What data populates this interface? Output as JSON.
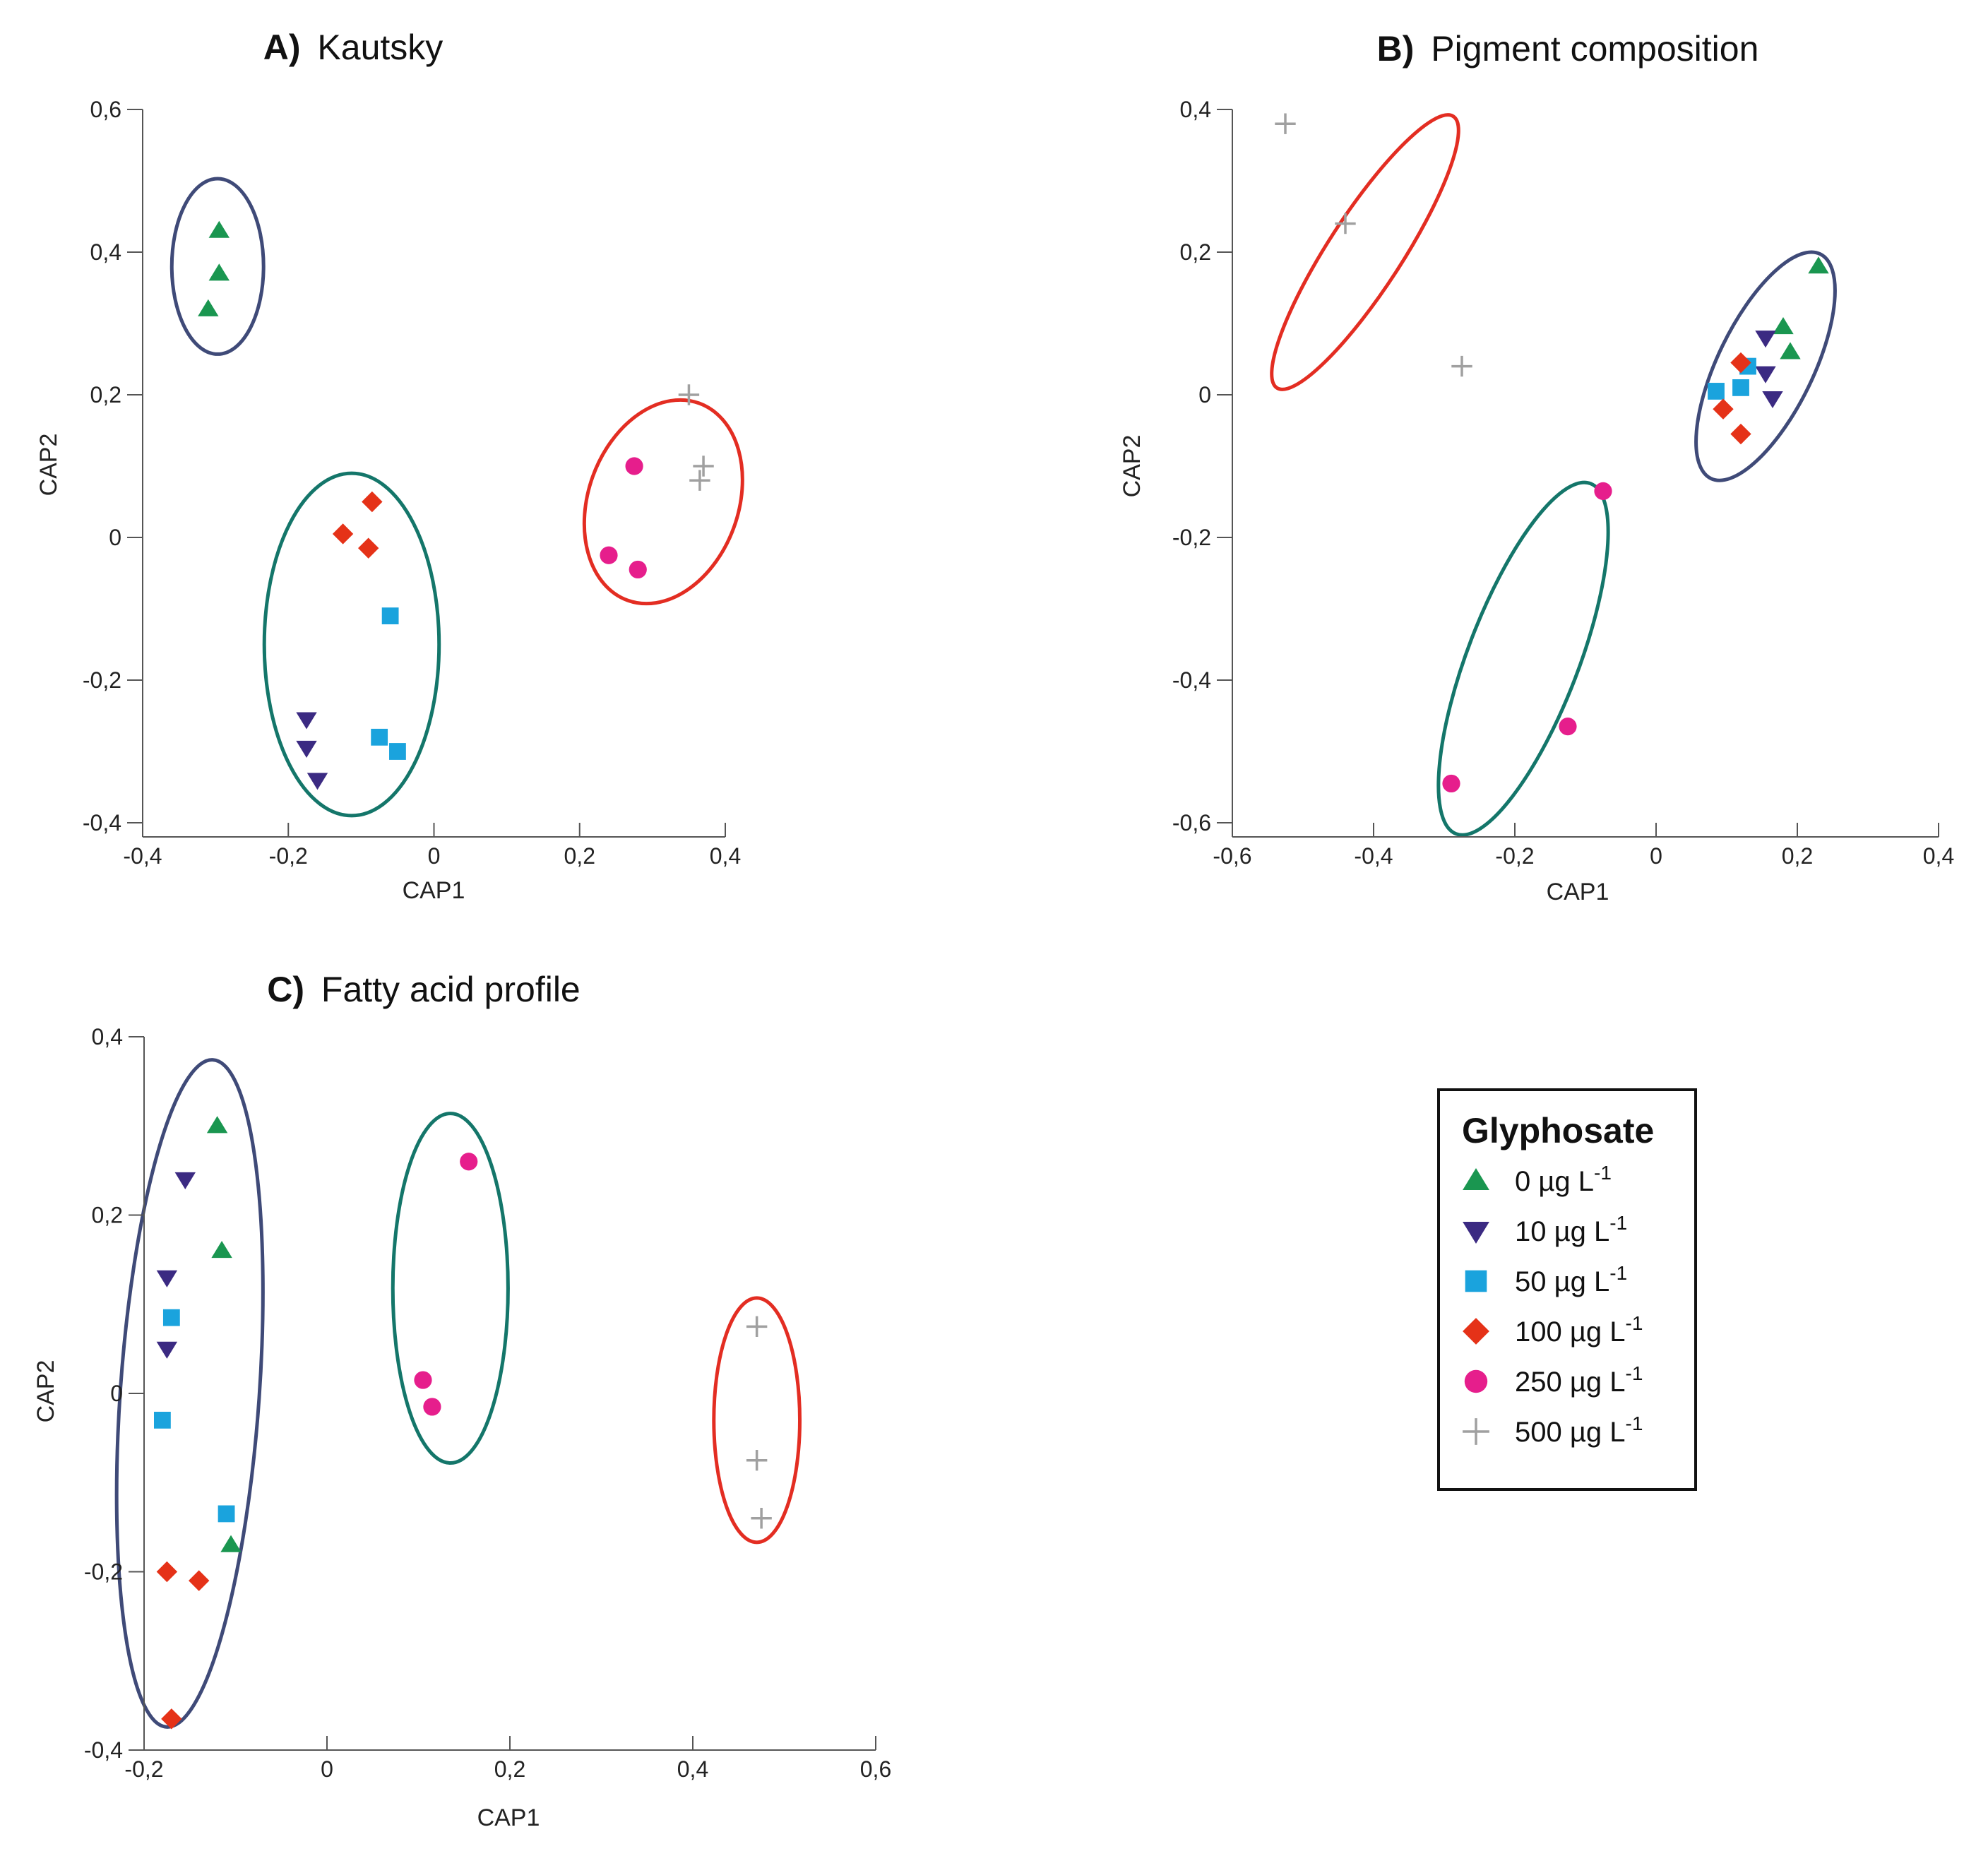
{
  "colors": {
    "g0": "#1a9650",
    "g10": "#3b2a82",
    "g50": "#1aa3dd",
    "g100": "#e53218",
    "g250": "#e61e8c",
    "g500": "#a0a0a0",
    "ring_navy": "#3f4a78",
    "ring_teal": "#14766a",
    "ring_red": "#e32d22",
    "axis": "#555555"
  },
  "legend": {
    "title": "Glyphosate",
    "items": [
      {
        "key": "g0",
        "marker": "triangle-up",
        "value": "0",
        "unit": "µg L",
        "exp": "-1"
      },
      {
        "key": "g10",
        "marker": "triangle-down",
        "value": "10",
        "unit": "µg L",
        "exp": "-1"
      },
      {
        "key": "g50",
        "marker": "square",
        "value": "50",
        "unit": "µg L",
        "exp": "-1"
      },
      {
        "key": "g100",
        "marker": "diamond",
        "value": "100",
        "unit": "µg L",
        "exp": "-1"
      },
      {
        "key": "g250",
        "marker": "circle",
        "value": "250",
        "unit": "µg L",
        "exp": "-1"
      },
      {
        "key": "g500",
        "marker": "plus",
        "value": "500",
        "unit": "µg L",
        "exp": "-1"
      }
    ]
  },
  "chart_data": [
    {
      "id": "A",
      "type": "scatter",
      "title_letter": "A)",
      "title_text": "Kautsky",
      "xlabel": "CAP1",
      "ylabel": "CAP2",
      "xlim": [
        -0.4,
        0.4
      ],
      "ylim": [
        -0.4,
        0.6
      ],
      "xticks": [
        -0.4,
        -0.2,
        0,
        0.2,
        0.4
      ],
      "yticks": [
        -0.4,
        -0.2,
        0,
        0.2,
        0.4,
        0.6
      ],
      "xticklabels": [
        "-0,4",
        "-0,2",
        "0",
        "0,2",
        "0,4"
      ],
      "yticklabels": [
        "-0,4",
        "-0,2",
        "0",
        "0,2",
        "0,4",
        "0,6"
      ],
      "series": [
        {
          "name": "0 µg L-1",
          "key": "g0",
          "marker": "triangle-up",
          "points": [
            [
              -0.295,
              0.43
            ],
            [
              -0.295,
              0.37
            ],
            [
              -0.31,
              0.32
            ]
          ]
        },
        {
          "name": "10 µg L-1",
          "key": "g10",
          "marker": "triangle-down",
          "points": [
            [
              -0.175,
              -0.255
            ],
            [
              -0.175,
              -0.295
            ],
            [
              -0.16,
              -0.34
            ]
          ]
        },
        {
          "name": "50 µg L-1",
          "key": "g50",
          "marker": "square",
          "points": [
            [
              -0.06,
              -0.11
            ],
            [
              -0.075,
              -0.28
            ],
            [
              -0.05,
              -0.3
            ]
          ]
        },
        {
          "name": "100 µg L-1",
          "key": "g100",
          "marker": "diamond",
          "points": [
            [
              -0.085,
              0.05
            ],
            [
              -0.125,
              0.005
            ],
            [
              -0.09,
              -0.015
            ]
          ]
        },
        {
          "name": "250 µg L-1",
          "key": "g250",
          "marker": "circle",
          "points": [
            [
              0.275,
              0.1
            ],
            [
              0.24,
              -0.025
            ],
            [
              0.28,
              -0.045
            ]
          ]
        },
        {
          "name": "500 µg L-1",
          "key": "g500",
          "marker": "plus",
          "points": [
            [
              0.35,
              0.2
            ],
            [
              0.37,
              0.1
            ],
            [
              0.365,
              0.08
            ]
          ]
        }
      ],
      "ellipses": [
        {
          "ring": "ring_navy",
          "cx": -0.297,
          "cy": 0.38,
          "rx": 0.063,
          "ry": 0.123,
          "angle": 0
        },
        {
          "ring": "ring_teal",
          "cx": -0.113,
          "cy": -0.15,
          "rx": 0.12,
          "ry": 0.24,
          "angle": 0
        },
        {
          "ring": "ring_red",
          "cx": 0.315,
          "cy": 0.05,
          "rx": 0.103,
          "ry": 0.147,
          "angle": 20
        }
      ]
    },
    {
      "id": "B",
      "type": "scatter",
      "title_letter": "B)",
      "title_text": "Pigment composition",
      "xlabel": "CAP1",
      "ylabel": "CAP2",
      "xlim": [
        -0.6,
        0.4
      ],
      "ylim": [
        -0.6,
        0.4
      ],
      "xticks": [
        -0.6,
        -0.4,
        -0.2,
        0,
        0.2,
        0.4
      ],
      "yticks": [
        -0.6,
        -0.4,
        -0.2,
        0,
        0.2,
        0.4
      ],
      "xticklabels": [
        "-0,6",
        "-0,4",
        "-0,2",
        "0",
        "0,2",
        "0,4"
      ],
      "yticklabels": [
        "-0,6",
        "-0,4",
        "-0,2",
        "0",
        "0,2",
        "0,4"
      ],
      "series": [
        {
          "name": "0 µg L-1",
          "key": "g0",
          "marker": "triangle-up",
          "points": [
            [
              0.23,
              0.18
            ],
            [
              0.18,
              0.095
            ],
            [
              0.19,
              0.06
            ]
          ]
        },
        {
          "name": "10 µg L-1",
          "key": "g10",
          "marker": "triangle-down",
          "points": [
            [
              0.155,
              0.08
            ],
            [
              0.155,
              0.03
            ],
            [
              0.165,
              -0.005
            ]
          ]
        },
        {
          "name": "50 µg L-1",
          "key": "g50",
          "marker": "square",
          "points": [
            [
              0.085,
              0.005
            ],
            [
              0.12,
              0.01
            ],
            [
              0.13,
              0.04
            ]
          ]
        },
        {
          "name": "100 µg L-1",
          "key": "g100",
          "marker": "diamond",
          "points": [
            [
              0.12,
              0.045
            ],
            [
              0.095,
              -0.02
            ],
            [
              0.12,
              -0.055
            ]
          ]
        },
        {
          "name": "250 µg L-1",
          "key": "g250",
          "marker": "circle",
          "points": [
            [
              -0.075,
              -0.135
            ],
            [
              -0.125,
              -0.465
            ],
            [
              -0.29,
              -0.545
            ]
          ]
        },
        {
          "name": "500 µg L-1",
          "key": "g500",
          "marker": "plus",
          "points": [
            [
              -0.525,
              0.38
            ],
            [
              -0.44,
              0.24
            ],
            [
              -0.275,
              0.04
            ]
          ]
        }
      ],
      "ellipses": [
        {
          "ring": "ring_red",
          "cx": -0.412,
          "cy": 0.2,
          "rx": 0.052,
          "ry": 0.227,
          "angle": 33
        },
        {
          "ring": "ring_navy",
          "cx": 0.155,
          "cy": 0.04,
          "rx": 0.0675,
          "ry": 0.175,
          "angle": 26
        },
        {
          "ring": "ring_teal",
          "cx": -0.188,
          "cy": -0.37,
          "rx": 0.0785,
          "ry": 0.263,
          "angle": 21
        }
      ]
    },
    {
      "id": "C",
      "type": "scatter",
      "title_letter": "C)",
      "title_text": "Fatty acid profile",
      "xlabel": "CAP1",
      "ylabel": "CAP2",
      "xlim": [
        -0.2,
        0.6
      ],
      "ylim": [
        -0.4,
        0.4
      ],
      "xticks": [
        -0.2,
        0,
        0.2,
        0.4,
        0.6
      ],
      "yticks": [
        -0.4,
        -0.2,
        0,
        0.2,
        0.4
      ],
      "xticklabels": [
        "-0,2",
        "0",
        "0,2",
        "0,4",
        "0,6"
      ],
      "yticklabels": [
        "-0,4",
        "-0,2",
        "0",
        "0,2",
        "0,4"
      ],
      "series": [
        {
          "name": "0 µg L-1",
          "key": "g0",
          "marker": "triangle-up",
          "points": [
            [
              -0.12,
              0.3
            ],
            [
              -0.115,
              0.16
            ],
            [
              -0.105,
              -0.17
            ]
          ]
        },
        {
          "name": "10 µg L-1",
          "key": "g10",
          "marker": "triangle-down",
          "points": [
            [
              -0.155,
              0.24
            ],
            [
              -0.175,
              0.13
            ],
            [
              -0.175,
              0.05
            ]
          ]
        },
        {
          "name": "50 µg L-1",
          "key": "g50",
          "marker": "square",
          "points": [
            [
              -0.17,
              0.085
            ],
            [
              -0.18,
              -0.03
            ],
            [
              -0.11,
              -0.135
            ]
          ]
        },
        {
          "name": "100 µg L-1",
          "key": "g100",
          "marker": "diamond",
          "points": [
            [
              -0.175,
              -0.2
            ],
            [
              -0.14,
              -0.21
            ],
            [
              -0.17,
              -0.365
            ]
          ]
        },
        {
          "name": "250 µg L-1",
          "key": "g250",
          "marker": "circle",
          "points": [
            [
              0.155,
              0.26
            ],
            [
              0.105,
              0.015
            ],
            [
              0.115,
              -0.015
            ]
          ]
        },
        {
          "name": "500 µg L-1",
          "key": "g500",
          "marker": "plus",
          "points": [
            [
              0.47,
              0.075
            ],
            [
              0.47,
              -0.075
            ],
            [
              0.475,
              -0.14
            ]
          ]
        }
      ],
      "ellipses": [
        {
          "ring": "ring_navy",
          "cx": -0.15,
          "cy": 0.0,
          "rx": 0.076,
          "ry": 0.375,
          "angle": 4
        },
        {
          "ring": "ring_teal",
          "cx": 0.135,
          "cy": 0.118,
          "rx": 0.063,
          "ry": 0.196,
          "angle": 0
        },
        {
          "ring": "ring_red",
          "cx": 0.47,
          "cy": -0.03,
          "rx": 0.047,
          "ry": 0.137,
          "angle": 0
        }
      ]
    }
  ]
}
